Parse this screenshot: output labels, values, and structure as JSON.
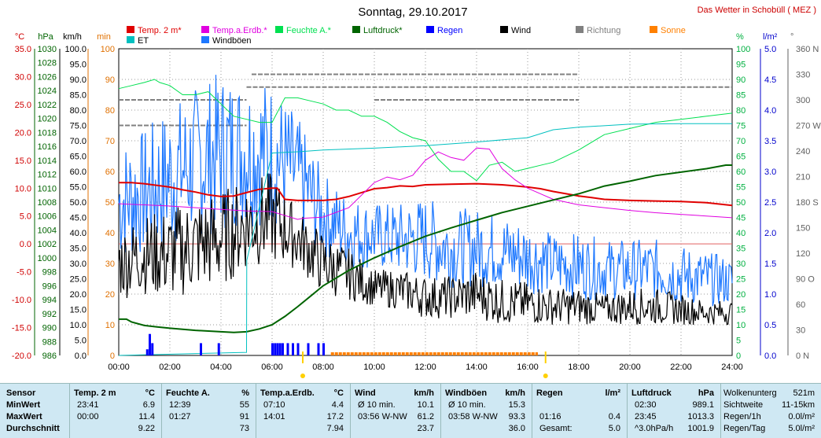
{
  "title": "Sonntag, 29.10.2017",
  "site_label": "Das Wetter in Schobüll ( MEZ )",
  "colors": {
    "temp": "#e00000",
    "soil": "#e000e0",
    "humidity": "#00e050",
    "pressure": "#006400",
    "rain": "#0000ff",
    "wind": "#000000",
    "direction": "#808080",
    "sun": "#ff8000",
    "et": "#00c0c0",
    "gust": "#1e78ff"
  },
  "chart_data": {
    "type": "line",
    "title": "Sonntag, 29.10.2017",
    "x_ticks": [
      "00:00",
      "02:00",
      "04:00",
      "06:00",
      "08:00",
      "10:00",
      "12:00",
      "14:00",
      "16:00",
      "18:00",
      "20:00",
      "22:00",
      "24:00"
    ],
    "x_range_hours": [
      0,
      24
    ],
    "legend_row1": [
      "Temp. 2 m*",
      "Temp.a.Erdb.*",
      "Feuchte A.*",
      "Luftdruck*",
      "Regen",
      "Wind",
      "Richtung",
      "Sonne"
    ],
    "legend_row2": [
      "ET",
      "Windböen"
    ],
    "axes": [
      {
        "unit": "°C",
        "range": [
          -20,
          35
        ],
        "ticks": [
          "35.0",
          "30.0",
          "25.0",
          "20.0",
          "15.0",
          "10.0",
          "5.0",
          "0.0",
          "-5.0",
          "-10.0",
          "-15.0",
          "-20.0"
        ]
      },
      {
        "unit": "hPa",
        "range": [
          986,
          1030
        ],
        "ticks": [
          "1030",
          "1028",
          "1026",
          "1024",
          "1022",
          "1020",
          "1018",
          "1016",
          "1014",
          "1012",
          "1010",
          "1008",
          "1006",
          "1004",
          "1002",
          "1000",
          "998",
          "996",
          "994",
          "992",
          "990",
          "988",
          "986"
        ]
      },
      {
        "unit": "km/h",
        "range": [
          0,
          100
        ],
        "ticks": [
          "100.0",
          "95.0",
          "90.0",
          "85.0",
          "80.0",
          "75.0",
          "70.0",
          "65.0",
          "60.0",
          "55.0",
          "50.0",
          "45.0",
          "40.0",
          "35.0",
          "30.0",
          "25.0",
          "20.0",
          "15.0",
          "10.0",
          "5.0",
          "0.0"
        ]
      },
      {
        "unit": "min",
        "range": [
          0,
          100
        ],
        "ticks": [
          "100",
          "90",
          "80",
          "70",
          "60",
          "50",
          "40",
          "30",
          "20",
          "10",
          "0"
        ]
      },
      {
        "unit": "%",
        "range": [
          0,
          100
        ],
        "ticks": [
          "100",
          "95",
          "90",
          "85",
          "80",
          "75",
          "70",
          "65",
          "60",
          "55",
          "50",
          "45",
          "40",
          "35",
          "30",
          "25",
          "20",
          "15",
          "10",
          "5",
          "0"
        ]
      },
      {
        "unit": "l/m²",
        "range": [
          0,
          5
        ],
        "ticks": [
          "5.0",
          "4.5",
          "4.0",
          "3.5",
          "3.0",
          "2.5",
          "2.0",
          "1.5",
          "1.0",
          "0.5",
          "0.0"
        ]
      },
      {
        "unit": "°",
        "range": [
          0,
          360
        ],
        "ticks": [
          "360 N",
          "330",
          "300",
          "270 W",
          "240",
          "210",
          "180 S",
          "150",
          "120",
          "90 O",
          "60",
          "30",
          "0 N"
        ]
      }
    ],
    "series": [
      {
        "name": "Temp. 2 m*",
        "axis": "°C",
        "x": [
          0,
          0.5,
          1,
          1.5,
          2,
          2.5,
          3,
          3.5,
          4,
          4.5,
          5,
          5.5,
          6,
          6.2,
          6.5,
          7,
          7.5,
          8,
          8.5,
          9,
          9.5,
          10,
          10.5,
          11,
          11.5,
          12,
          13,
          14,
          15,
          15.5,
          16,
          16.5,
          17,
          17.5,
          18,
          18.5,
          19,
          20,
          21,
          22,
          23,
          24
        ],
        "y": [
          11.0,
          11.0,
          10.8,
          10.5,
          10.2,
          9.7,
          9.3,
          8.8,
          8.5,
          8.6,
          9.2,
          9.8,
          10.0,
          10.0,
          8.0,
          7.8,
          7.8,
          7.8,
          8.0,
          8.5,
          9.2,
          9.9,
          10.1,
          10.4,
          10.3,
          10.6,
          10.7,
          10.8,
          10.6,
          10.4,
          10.2,
          9.9,
          9.4,
          9.0,
          8.6,
          8.3,
          8.0,
          7.8,
          7.7,
          7.6,
          7.4,
          6.9
        ]
      },
      {
        "name": "Temp.a.Erdb.*",
        "axis": "°C",
        "x": [
          0,
          1,
          2,
          3,
          4,
          5,
          6,
          7,
          7.2,
          8,
          9,
          10,
          10.5,
          11,
          11.5,
          12,
          12.5,
          13,
          13.5,
          14,
          14.5,
          15,
          15.5,
          16,
          16.5,
          17,
          18,
          19,
          20,
          21,
          22,
          23,
          24
        ],
        "y": [
          7.2,
          7.0,
          6.8,
          6.5,
          6.2,
          5.9,
          5.8,
          4.4,
          4.6,
          4.8,
          6.5,
          11.0,
          12.0,
          11.5,
          12.3,
          15.0,
          16.5,
          15.5,
          15.0,
          17.2,
          17.0,
          13.5,
          11.5,
          10.0,
          9.0,
          8.0,
          7.0,
          6.5,
          6.0,
          5.6,
          5.3,
          5.0,
          4.7
        ]
      },
      {
        "name": "Feuchte A.*",
        "axis": "%",
        "x": [
          0,
          0.5,
          1,
          1.4,
          1.6,
          2,
          2.5,
          3,
          3.5,
          4,
          4.5,
          5,
          5.5,
          6,
          6.5,
          7,
          7.5,
          8,
          8.5,
          9,
          9.5,
          10,
          10.5,
          11,
          11.5,
          12,
          12.5,
          13,
          13.5,
          14,
          14.5,
          15,
          15.5,
          16,
          16.5,
          17,
          18,
          19,
          20,
          21,
          22,
          23,
          24
        ],
        "y": [
          87,
          88,
          89,
          90,
          89,
          88,
          85,
          85,
          86,
          82,
          78,
          77,
          76,
          76,
          84,
          84,
          83,
          82,
          80,
          80,
          78,
          78,
          76,
          73,
          71,
          70,
          64,
          60,
          60,
          57,
          62,
          63,
          60,
          61,
          62,
          63,
          67,
          72,
          74,
          76,
          77,
          78,
          79
        ]
      },
      {
        "name": "Luftdruck*",
        "axis": "hPa",
        "x": [
          0,
          0.3,
          0.5,
          1,
          1.5,
          2,
          3,
          4,
          4.5,
          5,
          5.5,
          6,
          6.5,
          7,
          7.5,
          8,
          9,
          10,
          11,
          12,
          13,
          14,
          15,
          16,
          17,
          18,
          19,
          20,
          21,
          22,
          23,
          23.75,
          24
        ],
        "y": [
          991.2,
          991.2,
          990.8,
          990.3,
          990.1,
          989.9,
          989.6,
          989.4,
          989.3,
          989.4,
          989.8,
          990.4,
          991.6,
          993.0,
          994.5,
          996.0,
          998.2,
          1000.0,
          1001.6,
          1003.1,
          1004.3,
          1005.4,
          1006.5,
          1007.4,
          1008.3,
          1009.2,
          1010.3,
          1011.0,
          1011.8,
          1012.3,
          1012.8,
          1013.3,
          1013.3
        ]
      },
      {
        "name": "ET",
        "axis": "l/m²",
        "x": [
          0,
          5,
          5.01,
          6,
          7,
          8,
          10,
          12,
          14,
          16,
          17,
          18,
          20,
          22,
          24
        ],
        "y": [
          0.0,
          0.05,
          1.55,
          3.3,
          3.32,
          3.35,
          3.38,
          3.42,
          3.48,
          3.55,
          3.68,
          3.72,
          3.77,
          3.78,
          3.78
        ]
      }
    ],
    "wind_envelope": {
      "name": "Wind",
      "axis": "km/h",
      "x": [
        0,
        1,
        2,
        3,
        4,
        5,
        6,
        7,
        8,
        9,
        10,
        11,
        12,
        13,
        14,
        15,
        16,
        17,
        18,
        19,
        20,
        21,
        22,
        23,
        24
      ],
      "low": [
        18,
        20,
        18,
        20,
        22,
        28,
        30,
        28,
        20,
        18,
        16,
        15,
        12,
        12,
        12,
        10,
        10,
        10,
        10,
        10,
        10,
        10,
        10,
        10,
        10
      ],
      "high": [
        42,
        46,
        48,
        52,
        54,
        58,
        60,
        48,
        40,
        35,
        28,
        28,
        26,
        26,
        28,
        25,
        24,
        22,
        22,
        20,
        22,
        22,
        20,
        18,
        18
      ]
    },
    "gust_envelope": {
      "name": "Windböen",
      "axis": "km/h",
      "x": [
        0,
        1,
        2,
        3,
        4,
        5,
        6,
        7,
        8,
        9,
        10,
        11,
        12,
        13,
        14,
        15,
        16,
        17,
        18,
        19,
        20,
        21,
        22,
        23,
        24
      ],
      "low": [
        30,
        32,
        34,
        38,
        40,
        42,
        42,
        40,
        32,
        28,
        28,
        26,
        24,
        22,
        22,
        22,
        20,
        20,
        18,
        18,
        18,
        18,
        16,
        16,
        16
      ],
      "high": [
        70,
        74,
        82,
        88,
        93,
        92,
        90,
        78,
        60,
        52,
        50,
        50,
        52,
        48,
        48,
        46,
        44,
        40,
        40,
        38,
        38,
        38,
        36,
        34,
        32
      ]
    },
    "rain_bars": {
      "name": "Regen",
      "axis": "l/m²",
      "x": [
        1.1,
        1.2,
        1.3,
        3.2,
        3.9,
        6.0,
        6.1,
        6.2,
        6.3,
        6.4,
        6.6,
        6.8,
        7.0,
        7.4,
        7.8,
        8.0
      ],
      "y": [
        0.1,
        0.35,
        0.2,
        0.2,
        0.2,
        0.2,
        0.2,
        0.2,
        0.2,
        0.2,
        0.2,
        0.2,
        0.2,
        0.2,
        0.2,
        0.2
      ]
    },
    "sun_span": {
      "name": "Sonne",
      "start_hours": 8.3,
      "end_hours": 16.4
    },
    "direction_bands": [
      {
        "from": 0,
        "to": 5,
        "deg": 270
      },
      {
        "from": 0,
        "to": 5,
        "deg": 300
      },
      {
        "from": 5,
        "to": 24,
        "deg": 315
      },
      {
        "from": 5.2,
        "to": 18,
        "deg": 330
      },
      {
        "from": 10,
        "to": 18,
        "deg": 300
      }
    ]
  },
  "table": {
    "row_labels": [
      "Sensor",
      "MinWert",
      "MaxWert",
      "Durchschnitt"
    ],
    "cols": [
      {
        "h1": "Temp. 2 m",
        "h2": "°C",
        "min_t": "23:41",
        "min_v": "6.9",
        "max_t": "00:00",
        "max_v": "11.4",
        "avg": "9.22"
      },
      {
        "h1": "Feuchte A.",
        "h2": "%",
        "min_t": "12:39",
        "min_v": "55",
        "max_t": "01:27",
        "max_v": "91",
        "avg": "73"
      },
      {
        "h1": "Temp.a.Erdb.",
        "h2": "°C",
        "min_t": "07:10",
        "min_v": "4.4",
        "max_t": "14:01",
        "max_v": "17.2",
        "avg": "7.94"
      },
      {
        "h1": "Wind",
        "h2": "km/h",
        "min_t": "Ø 10 min.",
        "min_v": "10.1",
        "max_t": "03:56   W-NW",
        "max_v": "61.2",
        "avg": "23.7"
      },
      {
        "h1": "Windböen",
        "h2": "km/h",
        "min_t": "Ø 10 min.",
        "min_v": "15.3",
        "max_t": "03:58   W-NW",
        "max_v": "93.3",
        "avg": "36.0"
      },
      {
        "h1": "Regen",
        "h2": "l/m²",
        "min_t": "",
        "min_v": "",
        "max_t": "01:16",
        "max_v": "0.4",
        "avg_l": "Gesamt:",
        "avg": "5.0"
      },
      {
        "h1": "Luftdruck",
        "h2": "hPa",
        "min_t": "02:30",
        "min_v": "989.1",
        "max_t": "23:45",
        "max_v": "1013.3",
        "avg_l": "^3.0hPa/h",
        "avg": "1001.9"
      }
    ],
    "extra": [
      {
        "k": "Wolkenunterg",
        "v": "521m"
      },
      {
        "k": "Sichtweite",
        "v": "11-15km"
      },
      {
        "k": "Regen/1h",
        "v": "0.0l/m²"
      },
      {
        "k": "Regen/Tag",
        "v": "5.0l/m²"
      }
    ]
  }
}
